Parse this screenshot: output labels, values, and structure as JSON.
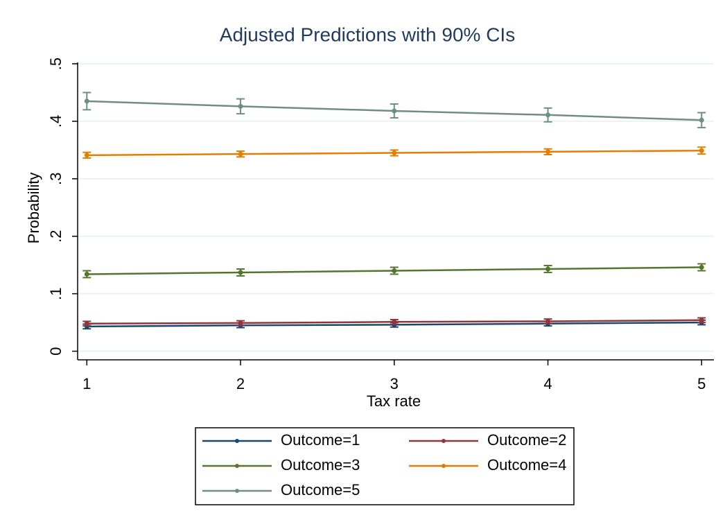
{
  "chart_data": {
    "type": "line",
    "title": "Adjusted Predictions with 90% CIs",
    "x_label": "Tax rate",
    "y_label": "Probability",
    "x": [
      1,
      2,
      3,
      4,
      5
    ],
    "series": [
      {
        "name": "Outcome=1",
        "color": "#1a476f",
        "values": [
          0.043,
          0.045,
          0.046,
          0.048,
          0.05
        ],
        "errors": [
          0.004,
          0.004,
          0.004,
          0.004,
          0.004
        ]
      },
      {
        "name": "Outcome=2",
        "color": "#90353b",
        "values": [
          0.048,
          0.049,
          0.051,
          0.052,
          0.054
        ],
        "errors": [
          0.004,
          0.004,
          0.004,
          0.004,
          0.004
        ]
      },
      {
        "name": "Outcome=3",
        "color": "#55752f",
        "values": [
          0.134,
          0.137,
          0.14,
          0.143,
          0.146
        ],
        "errors": [
          0.006,
          0.006,
          0.006,
          0.006,
          0.006
        ]
      },
      {
        "name": "Outcome=4",
        "color": "#e37e00",
        "values": [
          0.341,
          0.343,
          0.345,
          0.347,
          0.349
        ],
        "errors": [
          0.005,
          0.005,
          0.005,
          0.005,
          0.006
        ]
      },
      {
        "name": "Outcome=5",
        "color": "#6e8e84",
        "values": [
          0.435,
          0.426,
          0.418,
          0.411,
          0.402
        ],
        "errors": [
          0.015,
          0.013,
          0.012,
          0.012,
          0.013
        ]
      }
    ],
    "xlim": [
      0.94,
      5.08
    ],
    "ylim": [
      -0.015,
      0.5
    ],
    "xticks": [
      1,
      2,
      3,
      4,
      5
    ],
    "yticks": [
      0,
      {
        "value": 0.1,
        "label": ".1"
      },
      {
        "value": 0.2,
        "label": ".2"
      },
      {
        "value": 0.3,
        "label": ".3"
      },
      {
        "value": 0.4,
        "label": ".4"
      },
      {
        "value": 0.5,
        "label": ".5"
      }
    ],
    "grid": true
  }
}
